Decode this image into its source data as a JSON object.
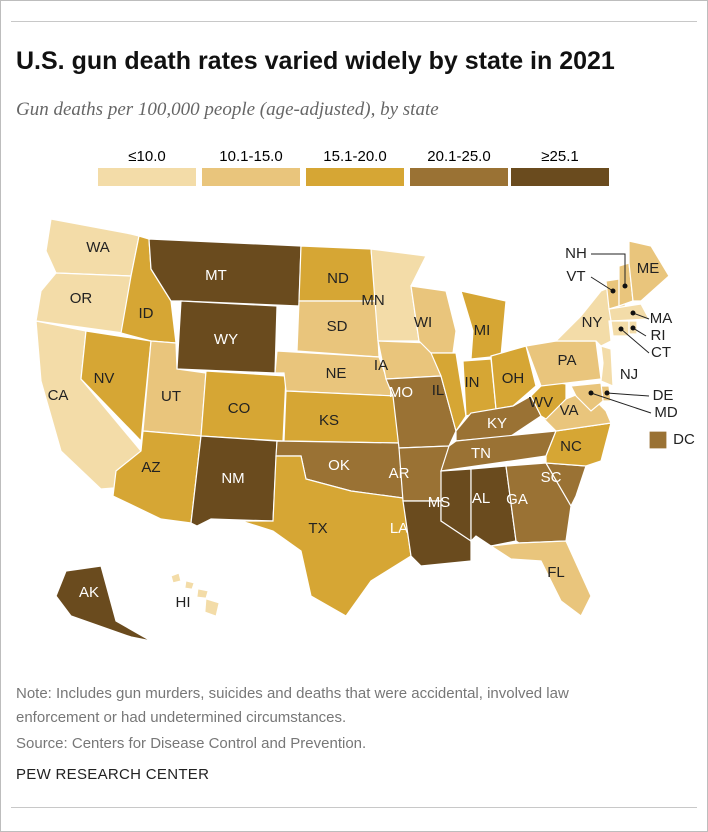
{
  "title": "U.S. gun death rates varied widely by state in 2021",
  "subtitle": "Gun deaths per 100,000 people (age-adjusted), by state",
  "legend": {
    "labels": [
      "≤10.0",
      "10.1-15.0",
      "15.1-20.0",
      "20.1-25.0",
      "≥25.1"
    ],
    "colors": [
      "#f3dca8",
      "#e9c57c",
      "#d6a634",
      "#9a7234",
      "#6a4b1e"
    ]
  },
  "states": [
    {
      "label": "WA",
      "class": 0
    },
    {
      "label": "OR",
      "class": 0
    },
    {
      "label": "CA",
      "class": 0
    },
    {
      "label": "NV",
      "class": 2
    },
    {
      "label": "ID",
      "class": 2
    },
    {
      "label": "MT",
      "class": 4
    },
    {
      "label": "WY",
      "class": 4
    },
    {
      "label": "UT",
      "class": 1
    },
    {
      "label": "CO",
      "class": 2
    },
    {
      "label": "AZ",
      "class": 2
    },
    {
      "label": "NM",
      "class": 4
    },
    {
      "label": "ND",
      "class": 2
    },
    {
      "label": "SD",
      "class": 1
    },
    {
      "label": "NE",
      "class": 1
    },
    {
      "label": "KS",
      "class": 2
    },
    {
      "label": "OK",
      "class": 3
    },
    {
      "label": "TX",
      "class": 2
    },
    {
      "label": "MN",
      "class": 0
    },
    {
      "label": "IA",
      "class": 1
    },
    {
      "label": "MO",
      "class": 3
    },
    {
      "label": "AR",
      "class": 3
    },
    {
      "label": "LA",
      "class": 4
    },
    {
      "label": "WI",
      "class": 1
    },
    {
      "label": "IL",
      "class": 2
    },
    {
      "label": "MI",
      "class": 2
    },
    {
      "label": "IN",
      "class": 2
    },
    {
      "label": "OH",
      "class": 2
    },
    {
      "label": "KY",
      "class": 3
    },
    {
      "label": "TN",
      "class": 3
    },
    {
      "label": "MS",
      "class": 4
    },
    {
      "label": "AL",
      "class": 4
    },
    {
      "label": "GA",
      "class": 3
    },
    {
      "label": "FL",
      "class": 1
    },
    {
      "label": "SC",
      "class": 3
    },
    {
      "label": "NC",
      "class": 2
    },
    {
      "label": "VA",
      "class": 1
    },
    {
      "label": "WV",
      "class": 2
    },
    {
      "label": "PA",
      "class": 1
    },
    {
      "label": "NY",
      "class": 0
    },
    {
      "label": "NJ",
      "class": 0
    },
    {
      "label": "VT",
      "class": 1
    },
    {
      "label": "NH",
      "class": 1
    },
    {
      "label": "ME",
      "class": 1
    },
    {
      "label": "MA",
      "class": 0
    },
    {
      "label": "CT",
      "class": 0
    },
    {
      "label": "RI",
      "class": 0
    },
    {
      "label": "DE",
      "class": 1
    },
    {
      "label": "MD",
      "class": 1
    },
    {
      "label": "DC",
      "class": 3
    },
    {
      "label": "AK",
      "class": 4
    },
    {
      "label": "HI",
      "class": 0
    }
  ],
  "note": "Note: Includes gun murders, suicides and deaths that were accidental, involved law enforcement or had undetermined circumstances.",
  "source": "Source: Centers for Disease Control and Prevention.",
  "footer": "PEW RESEARCH CENTER"
}
